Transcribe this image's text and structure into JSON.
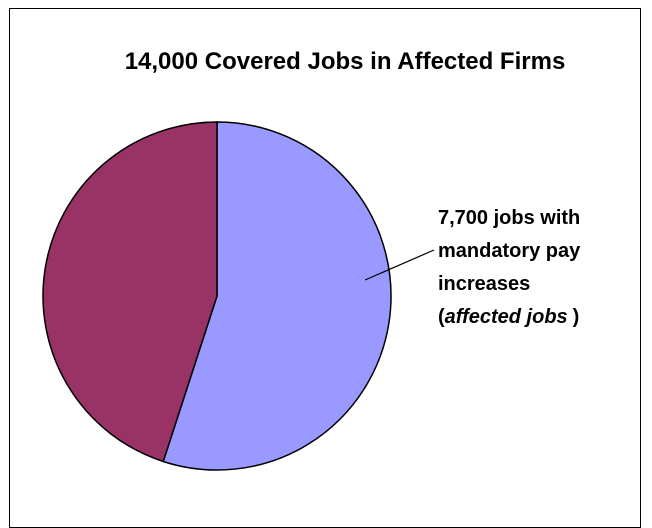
{
  "chart_data": {
    "type": "pie",
    "title": "14,000 Covered Jobs in Affected Firms",
    "slices": [
      {
        "value": 7700,
        "color": "#9999ff",
        "annotation": "affected-jobs"
      },
      {
        "value": 6300,
        "color": "#993366"
      }
    ],
    "start_angle_deg": 0,
    "direction": "clockwise",
    "annotation": {
      "line1": "7,700 jobs with",
      "line2": "mandatory pay",
      "line3": "increases",
      "line4_open": "(",
      "line4_italic": "affected jobs",
      "line4_close": ")"
    },
    "stroke_color": "#000000",
    "background": "#ffffff"
  }
}
